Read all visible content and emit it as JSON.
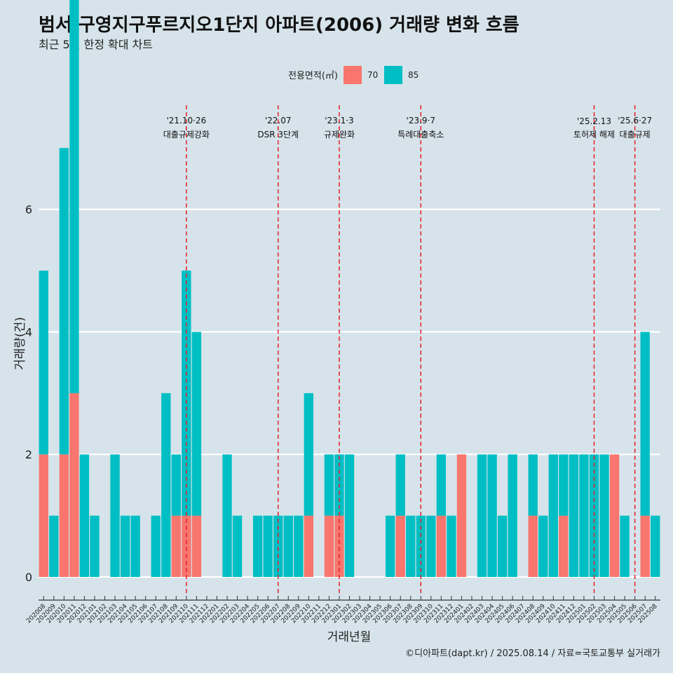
{
  "chart_data": {
    "type": "bar",
    "title": "범서 구영지구푸르지오1단지 아파트(2006) 거래량 변화 흐름",
    "subtitle": "최근 5년 한정 확대 차트",
    "xlabel": "거래년월",
    "ylabel": "거래량(건)",
    "caption": "©디아파트(dapt.kr) / 2025.08.14 / 자료=국토교통부 실거래가",
    "legend_title": "전용면적(㎡)",
    "legend_position": "top",
    "ylim": [
      0,
      7.2
    ],
    "yticks": [
      0,
      2,
      4,
      6
    ],
    "grid": true,
    "categories": [
      "202008",
      "202009",
      "202010",
      "202011",
      "202012",
      "202101",
      "202102",
      "202103",
      "202104",
      "202105",
      "202106",
      "202107",
      "202108",
      "202109",
      "202110",
      "202111",
      "202112",
      "202201",
      "202202",
      "202203",
      "202204",
      "202205",
      "202206",
      "202207",
      "202208",
      "202209",
      "202210",
      "202211",
      "202212",
      "202301",
      "202302",
      "202303",
      "202304",
      "202305",
      "202306",
      "202307",
      "202308",
      "202309",
      "202310",
      "202311",
      "202312",
      "202401",
      "202402",
      "202403",
      "202404",
      "202405",
      "202406",
      "202407",
      "202408",
      "202409",
      "202410",
      "202411",
      "202412",
      "202501",
      "202502",
      "202503",
      "202504",
      "202505",
      "202506",
      "202507",
      "202508"
    ],
    "series": [
      {
        "name": "70",
        "color": "#f8766d",
        "values": [
          2,
          0,
          2,
          3,
          0,
          0,
          0,
          0,
          0,
          0,
          0,
          0,
          0,
          1,
          1,
          1,
          0,
          0,
          0,
          0,
          0,
          0,
          0,
          0,
          0,
          0,
          1,
          0,
          1,
          1,
          0,
          0,
          0,
          0,
          0,
          1,
          0,
          0,
          0,
          1,
          0,
          2,
          0,
          0,
          0,
          0,
          0,
          0,
          1,
          0,
          0,
          1,
          0,
          0,
          0,
          0,
          2,
          0,
          0,
          1,
          0
        ]
      },
      {
        "name": "85",
        "color": "#00bfc4",
        "values": [
          3,
          1,
          5,
          7,
          2,
          1,
          0,
          2,
          1,
          1,
          0,
          1,
          3,
          1,
          4,
          3,
          0,
          0,
          2,
          1,
          0,
          1,
          1,
          1,
          1,
          1,
          2,
          0,
          1,
          1,
          2,
          0,
          0,
          0,
          1,
          1,
          1,
          1,
          1,
          1,
          1,
          0,
          0,
          2,
          2,
          1,
          2,
          0,
          1,
          1,
          2,
          1,
          2,
          2,
          2,
          2,
          0,
          1,
          0,
          3,
          1
        ]
      }
    ],
    "events": [
      {
        "at": "202110",
        "date": "'21.10·26",
        "label": "대출규제강화"
      },
      {
        "at": "202207",
        "date": "'22.07",
        "label": "DSR 3단계"
      },
      {
        "at": "202301",
        "date": "'23.1·3",
        "label": "규제완화"
      },
      {
        "at": "202309",
        "date": "'23.9·7",
        "label": "특례대출축소"
      },
      {
        "at": "202502",
        "date": "'25.2.13",
        "label": "토허제 해제"
      },
      {
        "at": "202506",
        "date": "'25.6·27",
        "label": "대출규제"
      }
    ]
  }
}
